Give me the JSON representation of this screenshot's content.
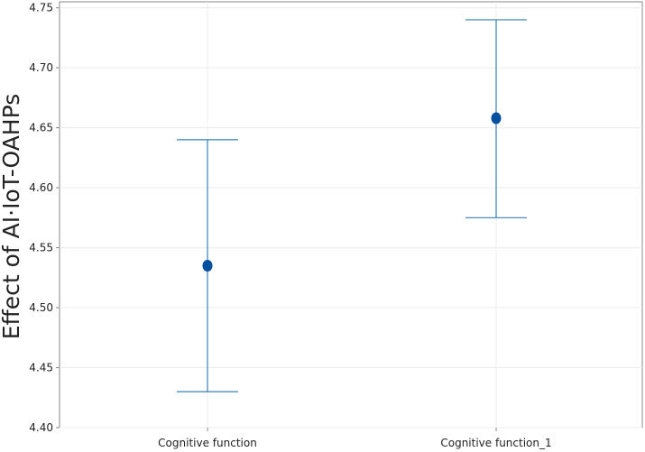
{
  "chart_data": {
    "type": "scatter",
    "subtype": "interval-plot",
    "title": "",
    "xlabel": "",
    "ylabel": "Effect of AI·IoT-OAHPs",
    "categories": [
      "Cognitive function",
      "Cognitive function_1"
    ],
    "means": [
      4.535,
      4.658
    ],
    "lower": [
      4.43,
      4.575
    ],
    "upper": [
      4.64,
      4.74
    ],
    "ylim": [
      4.4,
      4.755
    ],
    "yticks": [
      "4.40",
      "4.45",
      "4.50",
      "4.55",
      "4.60",
      "4.65",
      "4.70",
      "4.75"
    ],
    "grid": true,
    "colors": {
      "marker": "#0050a0",
      "errorbar": "#3a7fb8",
      "frame": "#888888",
      "grid": "#ececec"
    }
  }
}
